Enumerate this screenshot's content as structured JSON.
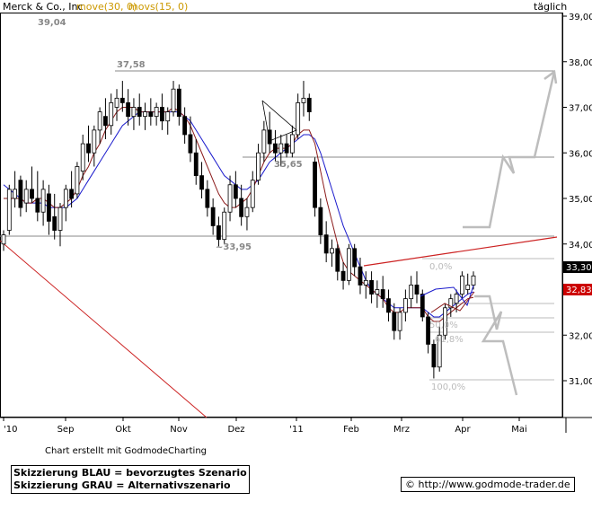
{
  "header": {
    "title": "Merck & Co., Inc",
    "ma_slow": "move(30, 0)",
    "ma_fast": "movs(15, 0)",
    "period": "täglich"
  },
  "footer": {
    "credit": "Chart erstellt mit GodmodeCharting",
    "legend_line1": "Skizzierung BLAU = bevorzugtes Szenario",
    "legend_line2": "Skizzierung GRAU = Alternativszenario",
    "url": "© http://www.godmode-trader.de"
  },
  "colors": {
    "candle": "#000000",
    "ma_slow": "#1a1acc",
    "ma_fast": "#8b1a1a",
    "trend_red": "#cc2222",
    "hline": "#888888",
    "fib_line": "#bbbbbb",
    "scenario_gray": "#bdbdbd",
    "price_last": "#000000",
    "price_ma": "#cc0000"
  },
  "chart_data": {
    "type": "candlestick",
    "ylim": [
      30.7,
      39.1
    ],
    "y_ticks": [
      "31,00",
      "32,00",
      "33,00",
      "34,00",
      "35,00",
      "36,00",
      "37,00",
      "38,00",
      "39,00"
    ],
    "x_labels": [
      "'10",
      "Sep",
      "Okt",
      "Nov",
      "Dez",
      "'11",
      "Feb",
      "Mrz",
      "Apr",
      "Mai"
    ],
    "price_tags": {
      "last": "33,30",
      "ma": "32,83"
    },
    "level_labels": [
      {
        "text": "39,04",
        "value": 39.04
      },
      {
        "text": "37,58",
        "value": 37.58
      },
      {
        "text": "35,65",
        "value": 35.65
      },
      {
        "text": "~33,95",
        "value": 33.95
      }
    ],
    "fib_labels": [
      "0,0%",
      "50,0%",
      "61,8%",
      "100,0%"
    ],
    "candles": [
      {
        "date": "Aug",
        "o": 34.0,
        "h": 34.3,
        "l": 33.85,
        "c": 34.2
      },
      {
        "date": "Aug",
        "o": 34.3,
        "h": 35.3,
        "l": 34.2,
        "c": 35.2
      },
      {
        "date": "Aug",
        "o": 35.0,
        "h": 35.6,
        "l": 34.8,
        "c": 35.2
      },
      {
        "date": "Aug",
        "o": 35.4,
        "h": 35.5,
        "l": 34.6,
        "c": 34.8
      },
      {
        "date": "Aug",
        "o": 34.9,
        "h": 35.4,
        "l": 34.7,
        "c": 35.2
      },
      {
        "date": "Aug",
        "o": 35.2,
        "h": 35.7,
        "l": 34.9,
        "c": 35.0
      },
      {
        "date": "Aug",
        "o": 35.0,
        "h": 35.6,
        "l": 34.5,
        "c": 34.7
      },
      {
        "date": "Aug",
        "o": 34.7,
        "h": 35.4,
        "l": 34.4,
        "c": 35.2
      },
      {
        "date": "Aug",
        "o": 35.1,
        "h": 35.3,
        "l": 34.2,
        "c": 34.5
      },
      {
        "date": "Aug",
        "o": 34.6,
        "h": 35.1,
        "l": 34.1,
        "c": 34.3
      },
      {
        "date": "Aug",
        "o": 34.3,
        "h": 34.9,
        "l": 33.95,
        "c": 34.8
      },
      {
        "date": "Sep",
        "o": 34.8,
        "h": 35.3,
        "l": 34.5,
        "c": 35.2
      },
      {
        "date": "Sep",
        "o": 35.2,
        "h": 35.6,
        "l": 34.8,
        "c": 35.0
      },
      {
        "date": "Sep",
        "o": 35.1,
        "h": 35.8,
        "l": 35.0,
        "c": 35.7
      },
      {
        "date": "Sep",
        "o": 35.6,
        "h": 36.4,
        "l": 35.4,
        "c": 36.2
      },
      {
        "date": "Sep",
        "o": 36.2,
        "h": 36.6,
        "l": 35.8,
        "c": 36.0
      },
      {
        "date": "Sep",
        "o": 36.0,
        "h": 36.6,
        "l": 35.7,
        "c": 36.5
      },
      {
        "date": "Sep",
        "o": 36.5,
        "h": 37.0,
        "l": 36.2,
        "c": 36.9
      },
      {
        "date": "Sep",
        "o": 36.8,
        "h": 37.2,
        "l": 36.3,
        "c": 36.6
      },
      {
        "date": "Sep",
        "o": 36.6,
        "h": 37.3,
        "l": 36.4,
        "c": 37.1
      },
      {
        "date": "Sep",
        "o": 37.0,
        "h": 37.4,
        "l": 36.7,
        "c": 37.2
      },
      {
        "date": "Okt",
        "o": 37.2,
        "h": 37.58,
        "l": 36.9,
        "c": 37.1
      },
      {
        "date": "Okt",
        "o": 37.1,
        "h": 37.4,
        "l": 36.6,
        "c": 36.8
      },
      {
        "date": "Okt",
        "o": 36.8,
        "h": 37.2,
        "l": 36.5,
        "c": 37.0
      },
      {
        "date": "Okt",
        "o": 37.0,
        "h": 37.3,
        "l": 36.6,
        "c": 36.8
      },
      {
        "date": "Okt",
        "o": 36.8,
        "h": 37.1,
        "l": 36.5,
        "c": 36.9
      },
      {
        "date": "Okt",
        "o": 36.9,
        "h": 37.2,
        "l": 36.6,
        "c": 36.8
      },
      {
        "date": "Okt",
        "o": 36.8,
        "h": 37.1,
        "l": 36.6,
        "c": 37.0
      },
      {
        "date": "Okt",
        "o": 37.0,
        "h": 37.3,
        "l": 36.5,
        "c": 36.7
      },
      {
        "date": "Okt",
        "o": 36.7,
        "h": 37.0,
        "l": 36.4,
        "c": 36.9
      },
      {
        "date": "Okt",
        "o": 36.9,
        "h": 37.58,
        "l": 36.8,
        "c": 37.4
      },
      {
        "date": "Nov",
        "o": 37.4,
        "h": 37.5,
        "l": 36.6,
        "c": 36.8
      },
      {
        "date": "Nov",
        "o": 36.8,
        "h": 37.0,
        "l": 36.2,
        "c": 36.4
      },
      {
        "date": "Nov",
        "o": 36.4,
        "h": 36.8,
        "l": 35.8,
        "c": 36.0
      },
      {
        "date": "Nov",
        "o": 36.0,
        "h": 36.3,
        "l": 35.3,
        "c": 35.5
      },
      {
        "date": "Nov",
        "o": 35.5,
        "h": 35.8,
        "l": 35.0,
        "c": 35.2
      },
      {
        "date": "Nov",
        "o": 35.2,
        "h": 35.4,
        "l": 34.6,
        "c": 34.8
      },
      {
        "date": "Nov",
        "o": 34.8,
        "h": 35.0,
        "l": 34.2,
        "c": 34.4
      },
      {
        "date": "Nov",
        "o": 34.4,
        "h": 34.6,
        "l": 33.95,
        "c": 34.1
      },
      {
        "date": "Nov",
        "o": 34.1,
        "h": 34.8,
        "l": 34.0,
        "c": 34.7
      },
      {
        "date": "Dez",
        "o": 34.7,
        "h": 35.5,
        "l": 34.5,
        "c": 35.3
      },
      {
        "date": "Dez",
        "o": 35.3,
        "h": 35.6,
        "l": 34.8,
        "c": 35.0
      },
      {
        "date": "Dez",
        "o": 35.0,
        "h": 35.3,
        "l": 34.4,
        "c": 34.6
      },
      {
        "date": "Dez",
        "o": 34.6,
        "h": 35.0,
        "l": 34.3,
        "c": 34.8
      },
      {
        "date": "Dez",
        "o": 34.8,
        "h": 35.6,
        "l": 34.7,
        "c": 35.4
      },
      {
        "date": "Dez",
        "o": 35.4,
        "h": 36.2,
        "l": 35.3,
        "c": 36.0
      },
      {
        "date": "Dez",
        "o": 36.0,
        "h": 36.7,
        "l": 35.8,
        "c": 36.5
      },
      {
        "date": "Dez",
        "o": 36.5,
        "h": 36.9,
        "l": 36.0,
        "c": 36.2
      },
      {
        "date": "Dez",
        "o": 36.2,
        "h": 36.5,
        "l": 35.8,
        "c": 36.0
      },
      {
        "date": "Dez",
        "o": 36.0,
        "h": 36.4,
        "l": 35.7,
        "c": 36.2
      },
      {
        "date": "Dez",
        "o": 36.2,
        "h": 36.4,
        "l": 35.9,
        "c": 36.0
      },
      {
        "date": "Jan",
        "o": 36.0,
        "h": 36.6,
        "l": 35.9,
        "c": 36.4
      },
      {
        "date": "Jan",
        "o": 36.4,
        "h": 37.3,
        "l": 36.3,
        "c": 37.1
      },
      {
        "date": "Jan",
        "o": 37.1,
        "h": 37.58,
        "l": 36.8,
        "c": 37.2
      },
      {
        "date": "Jan",
        "o": 37.2,
        "h": 37.3,
        "l": 36.7,
        "c": 36.9
      },
      {
        "date": "Jan",
        "o": 35.8,
        "h": 35.9,
        "l": 34.6,
        "c": 34.8
      },
      {
        "date": "Jan",
        "o": 34.8,
        "h": 35.0,
        "l": 34.0,
        "c": 34.2
      },
      {
        "date": "Jan",
        "o": 34.2,
        "h": 34.5,
        "l": 33.6,
        "c": 33.8
      },
      {
        "date": "Jan",
        "o": 33.8,
        "h": 34.1,
        "l": 33.5,
        "c": 33.9
      },
      {
        "date": "Jan",
        "o": 33.9,
        "h": 34.0,
        "l": 33.2,
        "c": 33.4
      },
      {
        "date": "Jan",
        "o": 33.4,
        "h": 33.6,
        "l": 33.0,
        "c": 33.2
      },
      {
        "date": "Feb",
        "o": 33.2,
        "h": 34.0,
        "l": 33.1,
        "c": 33.9
      },
      {
        "date": "Feb",
        "o": 33.9,
        "h": 34.0,
        "l": 33.3,
        "c": 33.5
      },
      {
        "date": "Feb",
        "o": 33.5,
        "h": 33.7,
        "l": 32.9,
        "c": 33.1
      },
      {
        "date": "Feb",
        "o": 33.1,
        "h": 33.4,
        "l": 32.8,
        "c": 33.2
      },
      {
        "date": "Feb",
        "o": 33.2,
        "h": 33.4,
        "l": 32.7,
        "c": 32.9
      },
      {
        "date": "Feb",
        "o": 32.9,
        "h": 33.2,
        "l": 32.6,
        "c": 33.0
      },
      {
        "date": "Feb",
        "o": 33.0,
        "h": 33.3,
        "l": 32.6,
        "c": 32.8
      },
      {
        "date": "Feb",
        "o": 32.8,
        "h": 33.0,
        "l": 32.3,
        "c": 32.5
      },
      {
        "date": "Mrz",
        "o": 32.5,
        "h": 32.7,
        "l": 31.9,
        "c": 32.1
      },
      {
        "date": "Mrz",
        "o": 32.1,
        "h": 32.6,
        "l": 31.9,
        "c": 32.5
      },
      {
        "date": "Mrz",
        "o": 32.5,
        "h": 33.0,
        "l": 32.3,
        "c": 32.8
      },
      {
        "date": "Mrz",
        "o": 32.8,
        "h": 33.3,
        "l": 32.6,
        "c": 33.1
      },
      {
        "date": "Mrz",
        "o": 33.1,
        "h": 33.4,
        "l": 32.7,
        "c": 32.9
      },
      {
        "date": "Mrz",
        "o": 32.9,
        "h": 33.0,
        "l": 32.3,
        "c": 32.4
      },
      {
        "date": "Mrz",
        "o": 32.4,
        "h": 32.5,
        "l": 31.6,
        "c": 31.8
      },
      {
        "date": "Mrz",
        "o": 31.8,
        "h": 31.9,
        "l": 31.05,
        "c": 31.3
      },
      {
        "date": "Mrz",
        "o": 31.3,
        "h": 32.2,
        "l": 31.2,
        "c": 32.0
      },
      {
        "date": "Apr",
        "o": 32.0,
        "h": 32.7,
        "l": 31.9,
        "c": 32.6
      },
      {
        "date": "Apr",
        "o": 32.6,
        "h": 32.9,
        "l": 32.4,
        "c": 32.8
      },
      {
        "date": "Apr",
        "o": 32.7,
        "h": 33.0,
        "l": 32.5,
        "c": 32.9
      },
      {
        "date": "Apr",
        "o": 32.9,
        "h": 33.4,
        "l": 32.8,
        "c": 33.3
      },
      {
        "date": "Apr",
        "o": 33.0,
        "h": 33.35,
        "l": 32.9,
        "c": 33.1
      },
      {
        "date": "Apr",
        "o": 33.1,
        "h": 33.4,
        "l": 33.0,
        "c": 33.3
      }
    ],
    "ma_slow_values": [
      35.3,
      35.2,
      35.1,
      35.0,
      34.9,
      34.9,
      34.9,
      34.9,
      34.8,
      34.8,
      34.8,
      34.8,
      34.9,
      35.0,
      35.2,
      35.4,
      35.6,
      35.8,
      36.0,
      36.2,
      36.4,
      36.6,
      36.7,
      36.8,
      36.9,
      36.9,
      36.9,
      36.9,
      36.9,
      36.9,
      36.9,
      36.9,
      36.8,
      36.7,
      36.5,
      36.3,
      36.1,
      35.9,
      35.7,
      35.5,
      35.4,
      35.3,
      35.2,
      35.2,
      35.3,
      35.4,
      35.6,
      35.8,
      35.9,
      36.0,
      36.1,
      36.2,
      36.3,
      36.4,
      36.4,
      36.3,
      36.0,
      35.6,
      35.2,
      34.8,
      34.4,
      34.1,
      33.8,
      33.5,
      33.2,
      33.0,
      32.9,
      32.8,
      32.7,
      32.6,
      32.6,
      32.6,
      32.6,
      32.6,
      32.6,
      32.5,
      32.4,
      32.4,
      32.5,
      32.6,
      32.7,
      32.8,
      32.9,
      32.95
    ],
    "ma_fast_values": [
      35.0,
      35.0,
      35.0,
      35.0,
      34.9,
      34.9,
      35.0,
      35.0,
      34.9,
      34.8,
      34.8,
      34.9,
      35.0,
      35.2,
      35.5,
      35.7,
      36.0,
      36.2,
      36.5,
      36.7,
      36.9,
      37.0,
      37.0,
      37.0,
      36.9,
      36.9,
      36.9,
      36.9,
      36.9,
      36.9,
      37.0,
      36.9,
      36.8,
      36.6,
      36.3,
      36.0,
      35.7,
      35.4,
      35.1,
      34.9,
      34.8,
      34.8,
      34.9,
      35.0,
      35.2,
      35.5,
      35.8,
      36.0,
      36.1,
      36.1,
      36.1,
      36.2,
      36.4,
      36.5,
      36.5,
      36.2,
      35.6,
      35.0,
      34.5,
      34.0,
      33.6,
      33.4,
      33.3,
      33.2,
      33.1,
      33.0,
      32.9,
      32.8,
      32.6,
      32.5,
      32.5,
      32.6,
      32.6,
      32.6,
      32.6,
      32.4,
      32.3,
      32.3,
      32.4,
      32.5,
      32.6,
      32.7,
      32.8,
      32.83
    ]
  }
}
